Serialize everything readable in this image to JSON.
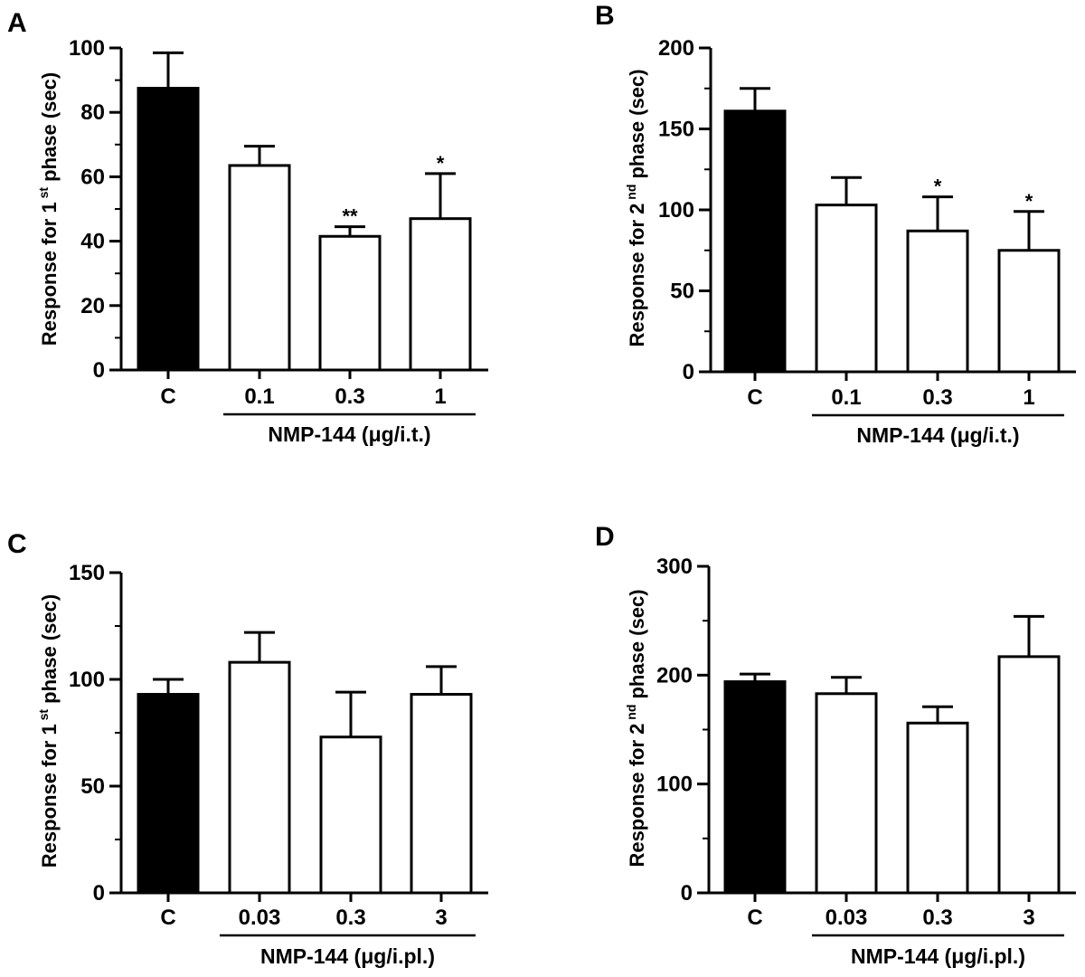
{
  "chart_data": [
    {
      "panel": "A",
      "type": "bar",
      "categories": [
        "C",
        "0.1",
        "0.3",
        "1"
      ],
      "values": [
        87.5,
        63.5,
        41.5,
        47
      ],
      "errors": [
        11,
        6,
        3,
        14
      ],
      "significance": [
        "",
        "",
        "**",
        "*"
      ],
      "bar_fill": [
        "#000000",
        "#ffffff",
        "#ffffff",
        "#ffffff"
      ],
      "ylabel": {
        "pre": "Response for 1",
        "sup": "st",
        "post": " phase (sec)"
      },
      "group_label": "NMP-144 (μg/i.t.)",
      "ylim": [
        0,
        100
      ],
      "yticks": [
        0,
        20,
        40,
        60,
        80,
        100
      ],
      "minor_step": 10
    },
    {
      "panel": "B",
      "type": "bar",
      "categories": [
        "C",
        "0.1",
        "0.3",
        "1"
      ],
      "values": [
        161,
        103,
        87,
        75
      ],
      "errors": [
        14,
        17,
        21,
        24
      ],
      "significance": [
        "",
        "",
        "*",
        "*"
      ],
      "bar_fill": [
        "#000000",
        "#ffffff",
        "#ffffff",
        "#ffffff"
      ],
      "ylabel": {
        "pre": "Response for 2",
        "sup": "nd",
        "post": " phase (sec)"
      },
      "group_label": "NMP-144 (μg/i.t.)",
      "ylim": [
        0,
        200
      ],
      "yticks": [
        0,
        50,
        100,
        150,
        200
      ],
      "minor_step": 25
    },
    {
      "panel": "C",
      "type": "bar",
      "categories": [
        "C",
        "0.03",
        "0.3",
        "3"
      ],
      "values": [
        93,
        108,
        73,
        93
      ],
      "errors": [
        7,
        14,
        21,
        13
      ],
      "significance": [
        "",
        "",
        "",
        ""
      ],
      "bar_fill": [
        "#000000",
        "#ffffff",
        "#ffffff",
        "#ffffff"
      ],
      "ylabel": {
        "pre": "Response for 1",
        "sup": "st",
        "post": " phase (sec)"
      },
      "group_label": "NMP-144 (μg/i.pl.)",
      "ylim": [
        0,
        150
      ],
      "yticks": [
        0,
        50,
        100,
        150
      ],
      "minor_step": 25
    },
    {
      "panel": "D",
      "type": "bar",
      "categories": [
        "C",
        "0.03",
        "0.3",
        "3"
      ],
      "values": [
        194,
        183,
        156,
        217
      ],
      "errors": [
        7,
        15,
        15,
        37
      ],
      "significance": [
        "",
        "",
        "",
        ""
      ],
      "bar_fill": [
        "#000000",
        "#ffffff",
        "#ffffff",
        "#ffffff"
      ],
      "ylabel": {
        "pre": "Response for 2",
        "sup": "nd",
        "post": " phase (sec)"
      },
      "group_label": "NMP-144 (μg/i.pl.)",
      "ylim": [
        0,
        300
      ],
      "yticks": [
        0,
        100,
        200,
        300
      ],
      "minor_step": 50
    }
  ]
}
